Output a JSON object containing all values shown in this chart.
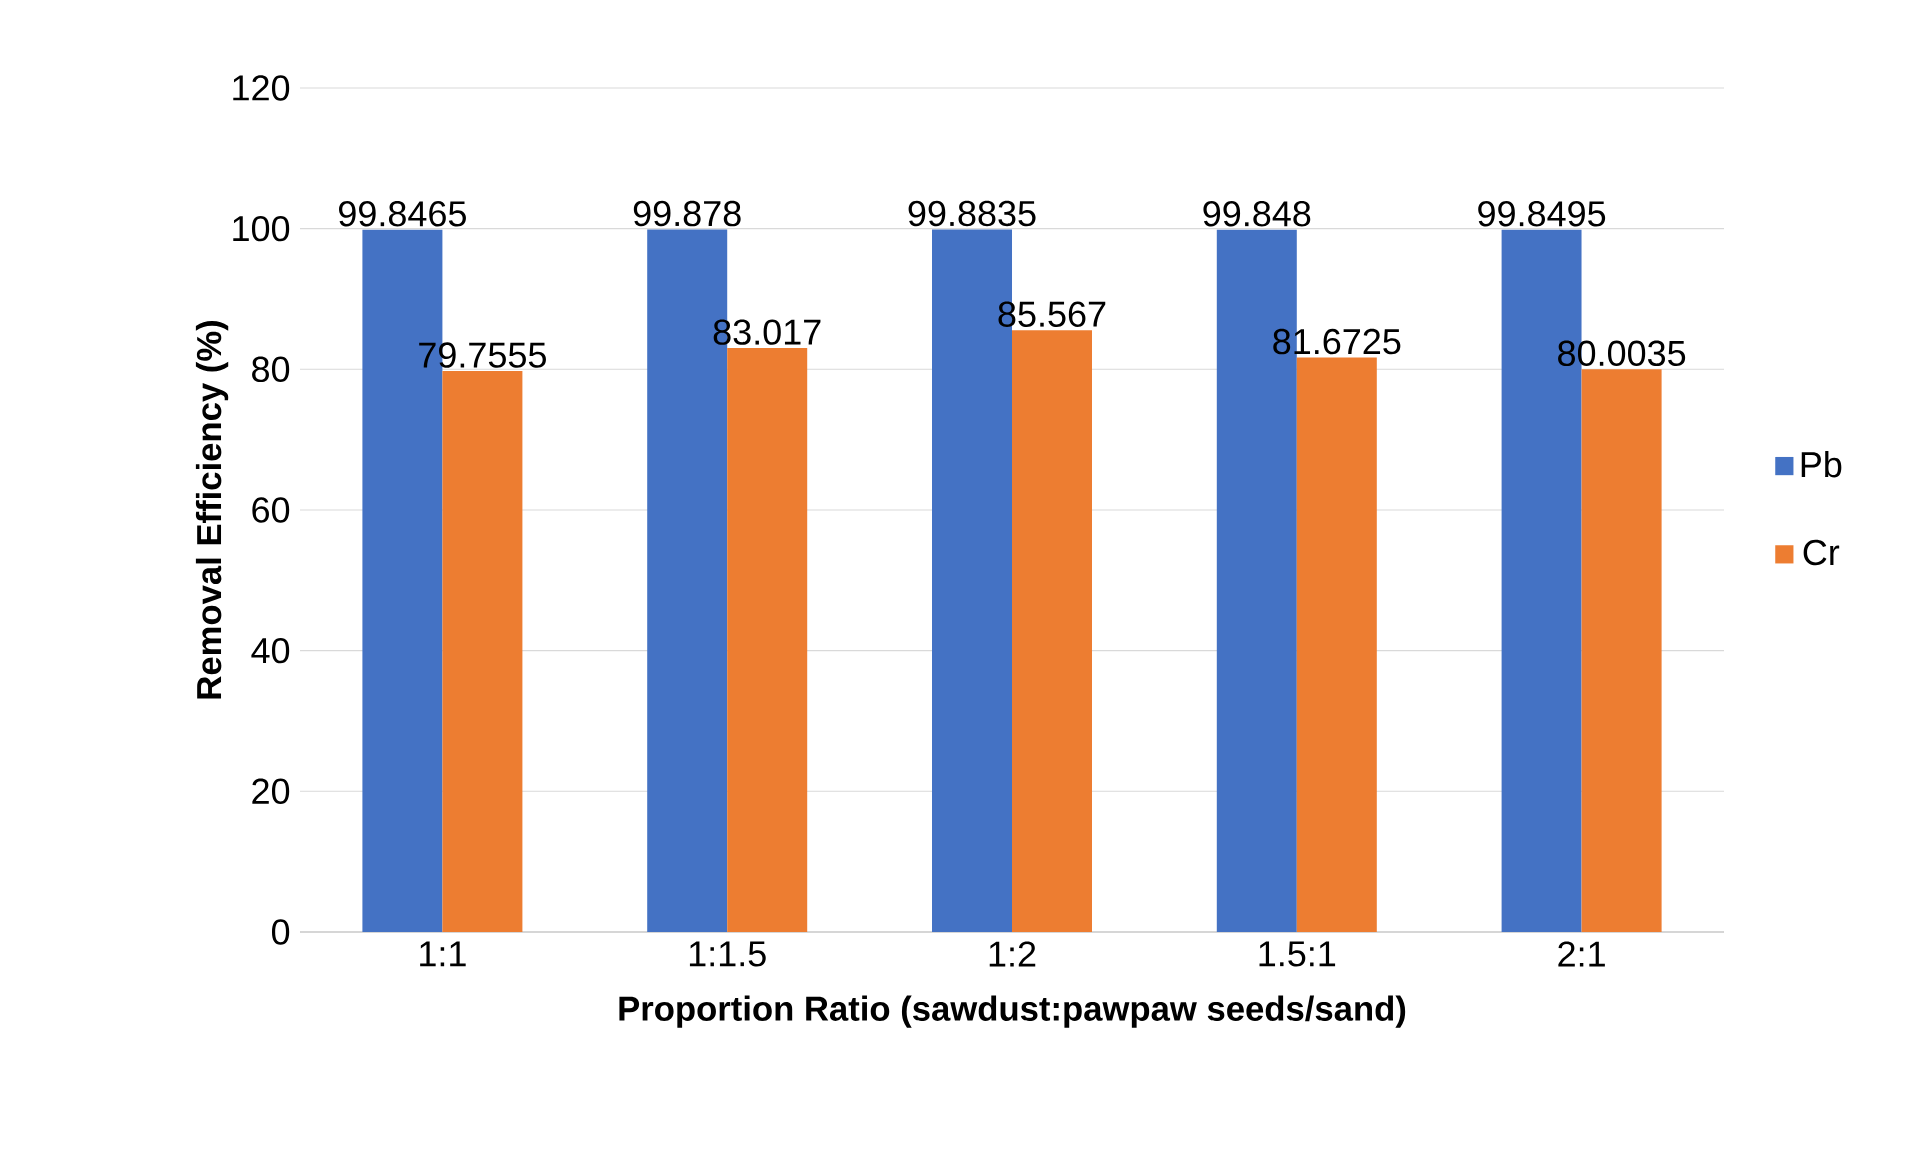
{
  "chart_data": {
    "type": "bar",
    "xlabel": "Proportion  Ratio (sawdust:pawpaw seeds/sand)",
    "ylabel": "Removal Efficiency (%)",
    "categories": [
      "1:1",
      "1:1.5",
      "1:2",
      "1.5:1",
      "2:1"
    ],
    "series": [
      {
        "name": "Pb",
        "color": "#4472c4",
        "values": [
          99.8465,
          99.878,
          99.8835,
          99.848,
          99.8495
        ],
        "value_labels": [
          "99.8465",
          "99.878",
          "99.8835",
          "99.848",
          "99.8495"
        ]
      },
      {
        "name": "Cr",
        "color": "#ed7d31",
        "values": [
          79.7555,
          83.017,
          85.567,
          81.6725,
          80.0035
        ],
        "value_labels": [
          "79.7555",
          "83.017",
          "85.567",
          "81.6725",
          "80.0035"
        ]
      }
    ],
    "ylim": [
      0,
      120
    ],
    "yticks": [
      0,
      20,
      40,
      60,
      80,
      100,
      120
    ],
    "grid": "y",
    "legend": "right"
  }
}
